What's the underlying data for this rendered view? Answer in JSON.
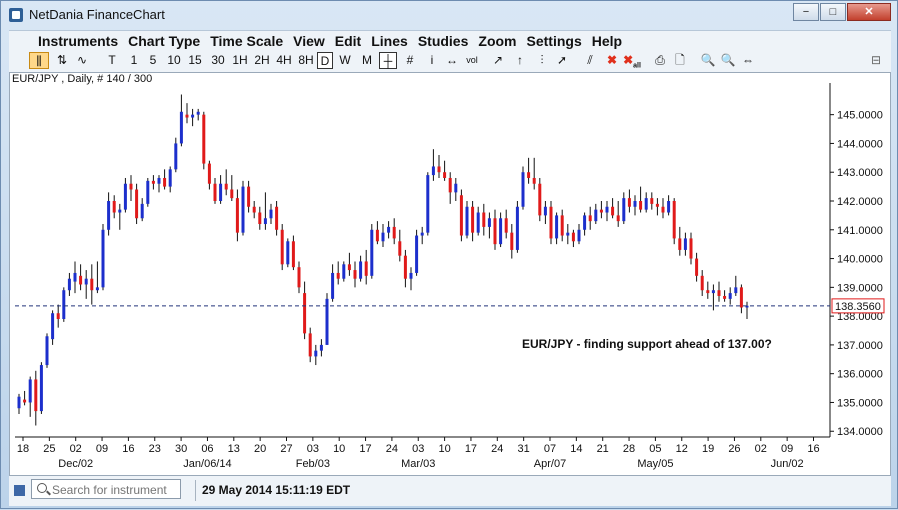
{
  "window": {
    "title": "NetDania FinanceChart",
    "controls": {
      "minimize": "−",
      "restore": "□",
      "close": "✕"
    }
  },
  "menu": [
    {
      "label": "Instruments"
    },
    {
      "label": "Chart Type"
    },
    {
      "label": "Time Scale"
    },
    {
      "label": "View"
    },
    {
      "label": "Edit"
    },
    {
      "label": "Lines"
    },
    {
      "label": "Studies"
    },
    {
      "label": "Zoom"
    },
    {
      "label": "Settings"
    },
    {
      "label": "Help"
    }
  ],
  "toolbar": {
    "chart_type_icons": [
      "candlestick-icon",
      "ohlc-bars-icon",
      "line-chart-icon"
    ],
    "timeframes": [
      "T",
      "1",
      "5",
      "10",
      "15",
      "30",
      "1H",
      "2H",
      "4H",
      "8H",
      "D",
      "W",
      "M"
    ],
    "selected_timeframe": "D",
    "tool_icons": [
      "crosshair-icon",
      "grid-icon",
      "info-icon",
      "pan-icon",
      "vol-icon",
      "trendline-icon",
      "ray-icon",
      "fibonacci-icon",
      "arrow-icon",
      "parallel-lines-icon",
      "delete-icon",
      "delete-all-icon",
      "print-icon",
      "print-preview-icon",
      "zoom-in-icon",
      "zoom-out-icon",
      "zoom-fit-icon"
    ],
    "vol_label": "vol",
    "all_label": "all"
  },
  "chart": {
    "header": "EUR/JPY , Daily, # 140 / 300",
    "annotation": "EUR/JPY - finding support ahead of 137.00?",
    "current_price": "138.3560",
    "colors": {
      "up": "#1c2fcc",
      "down": "#e01a1a",
      "price_line": "#22337a"
    }
  },
  "chart_data": {
    "type": "candlestick",
    "instrument": "EUR/JPY",
    "timeframe": "Daily",
    "ylim": [
      133.8,
      146.1
    ],
    "y_ticks": [
      "134.0000",
      "135.0000",
      "136.0000",
      "137.0000",
      "138.0000",
      "139.0000",
      "140.0000",
      "141.0000",
      "142.0000",
      "143.0000",
      "144.0000",
      "145.0000"
    ],
    "x_ticks": [
      "18",
      "25",
      "02",
      "09",
      "16",
      "23",
      "30",
      "06",
      "13",
      "20",
      "27",
      "03",
      "10",
      "17",
      "24",
      "03",
      "10",
      "17",
      "24",
      "31",
      "07",
      "14",
      "21",
      "28",
      "05",
      "12",
      "19",
      "26",
      "02",
      "09",
      "16"
    ],
    "x_month_labels": [
      "Dec/02",
      "Jan/06/14",
      "Feb/03",
      "Mar/03",
      "Apr/07",
      "May/05",
      "Jun/02"
    ],
    "current_price": 138.356,
    "candles": [
      {
        "o": 134.8,
        "h": 135.3,
        "l": 134.6,
        "c": 135.2
      },
      {
        "o": 135.1,
        "h": 135.4,
        "l": 134.9,
        "c": 135.0
      },
      {
        "o": 135.0,
        "h": 135.9,
        "l": 134.5,
        "c": 135.8
      },
      {
        "o": 135.8,
        "h": 136.1,
        "l": 134.2,
        "c": 134.7
      },
      {
        "o": 134.7,
        "h": 136.4,
        "l": 134.6,
        "c": 136.3
      },
      {
        "o": 136.3,
        "h": 137.4,
        "l": 136.2,
        "c": 137.3
      },
      {
        "o": 137.2,
        "h": 138.2,
        "l": 137.0,
        "c": 138.1
      },
      {
        "o": 138.1,
        "h": 138.4,
        "l": 137.6,
        "c": 137.9
      },
      {
        "o": 137.9,
        "h": 139.0,
        "l": 137.8,
        "c": 138.9
      },
      {
        "o": 138.9,
        "h": 139.5,
        "l": 138.7,
        "c": 139.3
      },
      {
        "o": 139.2,
        "h": 139.9,
        "l": 138.8,
        "c": 139.5
      },
      {
        "o": 139.4,
        "h": 139.8,
        "l": 138.9,
        "c": 139.1
      },
      {
        "o": 139.1,
        "h": 139.6,
        "l": 138.6,
        "c": 139.3
      },
      {
        "o": 139.3,
        "h": 139.8,
        "l": 138.4,
        "c": 138.9
      },
      {
        "o": 138.9,
        "h": 139.9,
        "l": 138.8,
        "c": 139.0
      },
      {
        "o": 139.0,
        "h": 141.2,
        "l": 138.9,
        "c": 141.0
      },
      {
        "o": 141.0,
        "h": 142.3,
        "l": 140.8,
        "c": 142.0
      },
      {
        "o": 142.0,
        "h": 142.2,
        "l": 141.4,
        "c": 141.6
      },
      {
        "o": 141.6,
        "h": 141.9,
        "l": 141.0,
        "c": 141.7
      },
      {
        "o": 141.7,
        "h": 142.8,
        "l": 141.6,
        "c": 142.6
      },
      {
        "o": 142.6,
        "h": 142.9,
        "l": 142.0,
        "c": 142.4
      },
      {
        "o": 142.4,
        "h": 142.6,
        "l": 141.2,
        "c": 141.4
      },
      {
        "o": 141.4,
        "h": 142.1,
        "l": 141.3,
        "c": 141.9
      },
      {
        "o": 141.9,
        "h": 142.8,
        "l": 141.8,
        "c": 142.7
      },
      {
        "o": 142.7,
        "h": 142.9,
        "l": 142.4,
        "c": 142.6
      },
      {
        "o": 142.6,
        "h": 142.9,
        "l": 142.3,
        "c": 142.8
      },
      {
        "o": 142.8,
        "h": 143.1,
        "l": 142.4,
        "c": 142.5
      },
      {
        "o": 142.5,
        "h": 143.2,
        "l": 142.3,
        "c": 143.1
      },
      {
        "o": 143.1,
        "h": 144.2,
        "l": 143.0,
        "c": 144.0
      },
      {
        "o": 144.0,
        "h": 145.7,
        "l": 143.9,
        "c": 145.1
      },
      {
        "o": 145.0,
        "h": 145.4,
        "l": 144.7,
        "c": 144.9
      },
      {
        "o": 144.9,
        "h": 145.2,
        "l": 144.6,
        "c": 145.0
      },
      {
        "o": 145.0,
        "h": 145.2,
        "l": 144.8,
        "c": 145.1
      },
      {
        "o": 145.0,
        "h": 145.1,
        "l": 143.1,
        "c": 143.3
      },
      {
        "o": 143.3,
        "h": 143.4,
        "l": 142.4,
        "c": 142.6
      },
      {
        "o": 142.6,
        "h": 142.8,
        "l": 141.9,
        "c": 142.0
      },
      {
        "o": 142.0,
        "h": 142.9,
        "l": 141.9,
        "c": 142.6
      },
      {
        "o": 142.6,
        "h": 143.1,
        "l": 142.2,
        "c": 142.4
      },
      {
        "o": 142.4,
        "h": 142.9,
        "l": 142.0,
        "c": 142.1
      },
      {
        "o": 142.1,
        "h": 142.4,
        "l": 140.6,
        "c": 140.9
      },
      {
        "o": 140.9,
        "h": 142.7,
        "l": 140.8,
        "c": 142.5
      },
      {
        "o": 142.5,
        "h": 142.7,
        "l": 141.6,
        "c": 141.8
      },
      {
        "o": 141.8,
        "h": 142.0,
        "l": 141.4,
        "c": 141.6
      },
      {
        "o": 141.6,
        "h": 141.8,
        "l": 141.0,
        "c": 141.2
      },
      {
        "o": 141.2,
        "h": 142.3,
        "l": 141.0,
        "c": 141.4
      },
      {
        "o": 141.4,
        "h": 141.9,
        "l": 141.2,
        "c": 141.7
      },
      {
        "o": 141.8,
        "h": 142.0,
        "l": 140.8,
        "c": 141.0
      },
      {
        "o": 141.0,
        "h": 141.2,
        "l": 139.6,
        "c": 139.8
      },
      {
        "o": 139.8,
        "h": 140.7,
        "l": 139.7,
        "c": 140.6
      },
      {
        "o": 140.6,
        "h": 140.8,
        "l": 139.6,
        "c": 139.7
      },
      {
        "o": 139.7,
        "h": 139.9,
        "l": 138.8,
        "c": 139.0
      },
      {
        "o": 138.8,
        "h": 139.2,
        "l": 137.2,
        "c": 137.4
      },
      {
        "o": 137.4,
        "h": 137.6,
        "l": 136.4,
        "c": 136.6
      },
      {
        "o": 136.6,
        "h": 137.0,
        "l": 136.3,
        "c": 136.8
      },
      {
        "o": 136.8,
        "h": 137.2,
        "l": 136.6,
        "c": 137.0
      },
      {
        "o": 137.0,
        "h": 138.8,
        "l": 137.0,
        "c": 138.6
      },
      {
        "o": 138.6,
        "h": 139.8,
        "l": 138.5,
        "c": 139.5
      },
      {
        "o": 139.5,
        "h": 139.9,
        "l": 139.1,
        "c": 139.3
      },
      {
        "o": 139.3,
        "h": 139.9,
        "l": 139.2,
        "c": 139.8
      },
      {
        "o": 139.8,
        "h": 140.2,
        "l": 139.4,
        "c": 139.6
      },
      {
        "o": 139.6,
        "h": 139.9,
        "l": 139.0,
        "c": 139.3
      },
      {
        "o": 139.3,
        "h": 140.1,
        "l": 139.2,
        "c": 139.9
      },
      {
        "o": 139.9,
        "h": 140.3,
        "l": 139.1,
        "c": 139.4
      },
      {
        "o": 139.4,
        "h": 141.2,
        "l": 139.3,
        "c": 141.0
      },
      {
        "o": 141.0,
        "h": 141.3,
        "l": 140.5,
        "c": 140.6
      },
      {
        "o": 140.6,
        "h": 141.2,
        "l": 140.4,
        "c": 140.9
      },
      {
        "o": 140.9,
        "h": 141.3,
        "l": 140.7,
        "c": 141.1
      },
      {
        "o": 141.1,
        "h": 141.4,
        "l": 140.5,
        "c": 140.7
      },
      {
        "o": 140.6,
        "h": 141.0,
        "l": 139.9,
        "c": 140.1
      },
      {
        "o": 140.1,
        "h": 140.3,
        "l": 139.0,
        "c": 139.3
      },
      {
        "o": 139.3,
        "h": 139.7,
        "l": 138.9,
        "c": 139.5
      },
      {
        "o": 139.5,
        "h": 141.0,
        "l": 139.4,
        "c": 140.8
      },
      {
        "o": 140.8,
        "h": 141.1,
        "l": 140.5,
        "c": 140.9
      },
      {
        "o": 140.9,
        "h": 143.0,
        "l": 140.8,
        "c": 142.9
      },
      {
        "o": 142.9,
        "h": 143.8,
        "l": 142.7,
        "c": 143.2
      },
      {
        "o": 143.2,
        "h": 143.6,
        "l": 142.8,
        "c": 143.0
      },
      {
        "o": 143.0,
        "h": 143.4,
        "l": 142.7,
        "c": 142.8
      },
      {
        "o": 142.8,
        "h": 143.0,
        "l": 141.9,
        "c": 142.3
      },
      {
        "o": 142.3,
        "h": 142.8,
        "l": 142.0,
        "c": 142.6
      },
      {
        "o": 142.2,
        "h": 142.4,
        "l": 140.6,
        "c": 140.8
      },
      {
        "o": 140.8,
        "h": 142.0,
        "l": 140.7,
        "c": 141.8
      },
      {
        "o": 141.8,
        "h": 142.0,
        "l": 140.6,
        "c": 140.9
      },
      {
        "o": 140.9,
        "h": 141.8,
        "l": 140.8,
        "c": 141.6
      },
      {
        "o": 141.6,
        "h": 141.9,
        "l": 140.8,
        "c": 141.1
      },
      {
        "o": 141.1,
        "h": 141.6,
        "l": 140.7,
        "c": 141.4
      },
      {
        "o": 141.4,
        "h": 141.7,
        "l": 140.3,
        "c": 140.5
      },
      {
        "o": 140.5,
        "h": 141.6,
        "l": 140.4,
        "c": 141.4
      },
      {
        "o": 141.4,
        "h": 141.7,
        "l": 140.7,
        "c": 140.9
      },
      {
        "o": 140.9,
        "h": 141.2,
        "l": 140.0,
        "c": 140.3
      },
      {
        "o": 140.3,
        "h": 142.0,
        "l": 140.2,
        "c": 141.8
      },
      {
        "o": 141.8,
        "h": 143.2,
        "l": 141.7,
        "c": 143.0
      },
      {
        "o": 143.0,
        "h": 143.5,
        "l": 142.6,
        "c": 142.8
      },
      {
        "o": 142.8,
        "h": 143.5,
        "l": 142.4,
        "c": 142.6
      },
      {
        "o": 142.6,
        "h": 142.8,
        "l": 141.3,
        "c": 141.5
      },
      {
        "o": 141.5,
        "h": 142.0,
        "l": 141.2,
        "c": 141.8
      },
      {
        "o": 141.8,
        "h": 142.0,
        "l": 140.5,
        "c": 140.7
      },
      {
        "o": 140.7,
        "h": 141.6,
        "l": 140.5,
        "c": 141.5
      },
      {
        "o": 141.5,
        "h": 141.7,
        "l": 140.6,
        "c": 140.8
      },
      {
        "o": 140.8,
        "h": 141.2,
        "l": 140.5,
        "c": 140.9
      },
      {
        "o": 140.9,
        "h": 141.0,
        "l": 140.4,
        "c": 140.6
      },
      {
        "o": 140.6,
        "h": 141.2,
        "l": 140.5,
        "c": 141.0
      },
      {
        "o": 141.0,
        "h": 141.6,
        "l": 140.8,
        "c": 141.5
      },
      {
        "o": 141.5,
        "h": 141.8,
        "l": 141.0,
        "c": 141.3
      },
      {
        "o": 141.3,
        "h": 141.9,
        "l": 141.2,
        "c": 141.7
      },
      {
        "o": 141.7,
        "h": 142.0,
        "l": 141.4,
        "c": 141.6
      },
      {
        "o": 141.6,
        "h": 142.0,
        "l": 141.3,
        "c": 141.8
      },
      {
        "o": 141.8,
        "h": 142.1,
        "l": 141.4,
        "c": 141.5
      },
      {
        "o": 141.5,
        "h": 142.0,
        "l": 141.1,
        "c": 141.3
      },
      {
        "o": 141.3,
        "h": 142.3,
        "l": 141.2,
        "c": 142.1
      },
      {
        "o": 142.1,
        "h": 142.4,
        "l": 141.6,
        "c": 141.8
      },
      {
        "o": 141.8,
        "h": 142.2,
        "l": 141.5,
        "c": 142.0
      },
      {
        "o": 142.0,
        "h": 142.5,
        "l": 141.6,
        "c": 141.7
      },
      {
        "o": 141.7,
        "h": 142.3,
        "l": 141.6,
        "c": 142.1
      },
      {
        "o": 142.1,
        "h": 142.3,
        "l": 141.7,
        "c": 141.9
      },
      {
        "o": 141.9,
        "h": 142.1,
        "l": 141.5,
        "c": 141.8
      },
      {
        "o": 141.8,
        "h": 142.1,
        "l": 141.4,
        "c": 141.6
      },
      {
        "o": 141.6,
        "h": 142.2,
        "l": 141.5,
        "c": 142.0
      },
      {
        "o": 142.0,
        "h": 142.1,
        "l": 140.5,
        "c": 140.7
      },
      {
        "o": 140.7,
        "h": 141.1,
        "l": 140.1,
        "c": 140.3
      },
      {
        "o": 140.3,
        "h": 140.9,
        "l": 140.1,
        "c": 140.7
      },
      {
        "o": 140.7,
        "h": 140.9,
        "l": 139.8,
        "c": 140.0
      },
      {
        "o": 140.0,
        "h": 140.2,
        "l": 139.2,
        "c": 139.4
      },
      {
        "o": 139.4,
        "h": 139.6,
        "l": 138.7,
        "c": 138.9
      },
      {
        "o": 138.9,
        "h": 139.2,
        "l": 138.6,
        "c": 138.8
      },
      {
        "o": 138.8,
        "h": 139.1,
        "l": 138.2,
        "c": 138.9
      },
      {
        "o": 138.9,
        "h": 139.2,
        "l": 138.5,
        "c": 138.7
      },
      {
        "o": 138.7,
        "h": 138.9,
        "l": 138.5,
        "c": 138.6
      },
      {
        "o": 138.6,
        "h": 139.0,
        "l": 138.4,
        "c": 138.8
      },
      {
        "o": 138.8,
        "h": 139.4,
        "l": 138.7,
        "c": 139.0
      },
      {
        "o": 139.0,
        "h": 139.1,
        "l": 138.1,
        "c": 138.3
      },
      {
        "o": 138.3,
        "h": 138.5,
        "l": 137.9,
        "c": 138.36
      }
    ]
  },
  "status": {
    "search_placeholder": "Search for instrument",
    "datetime": "29 May 2014 15:11:19 EDT"
  }
}
